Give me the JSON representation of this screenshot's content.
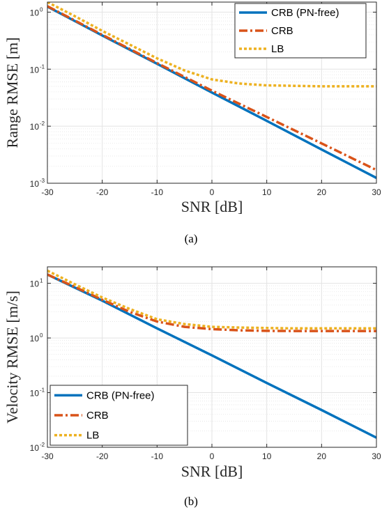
{
  "colors": {
    "crb_pn_free": "#0072BD",
    "crb": "#D95319",
    "lb": "#EDB120",
    "grid": "#e3e3e3",
    "axis": "#262626"
  },
  "chart_data": [
    {
      "type": "line",
      "caption": "(a)",
      "xlabel": "SNR [dB]",
      "ylabel": "Range RMSE [m]",
      "xscale": "linear",
      "yscale": "log",
      "xlim": [
        -30,
        30
      ],
      "ylim": [
        0.001,
        1.5
      ],
      "xticks": [
        -30,
        -20,
        -10,
        0,
        10,
        20,
        30
      ],
      "xtick_labels": [
        "-30",
        "-20",
        "-10",
        "0",
        "10",
        "20",
        "30"
      ],
      "yticks": [
        0.001,
        0.01,
        0.1,
        1
      ],
      "ytick_labels": [
        "10",
        "10",
        "10",
        "10"
      ],
      "ytick_exponents": [
        "-3",
        "-2",
        "-1",
        "0"
      ],
      "grid": true,
      "legend_position": "top-right",
      "series": [
        {
          "name": "CRB (PN-free)",
          "style": "solid",
          "color_key": "crb_pn_free",
          "x": [
            -30,
            -20,
            -10,
            0,
            10,
            20,
            30
          ],
          "y": [
            1.25,
            0.39,
            0.124,
            0.039,
            0.0124,
            0.0039,
            0.00124
          ]
        },
        {
          "name": "CRB",
          "style": "dashdot",
          "color_key": "crb",
          "x": [
            -30,
            -20,
            -10,
            0,
            10,
            20,
            30
          ],
          "y": [
            1.27,
            0.4,
            0.128,
            0.042,
            0.0145,
            0.005,
            0.0017
          ]
        },
        {
          "name": "LB",
          "style": "dotted",
          "color_key": "lb",
          "x": [
            -30,
            -25,
            -20,
            -15,
            -10,
            -5,
            0,
            5,
            10,
            15,
            20,
            25,
            30
          ],
          "y": [
            1.5,
            0.85,
            0.47,
            0.27,
            0.155,
            0.095,
            0.066,
            0.056,
            0.052,
            0.051,
            0.05,
            0.05,
            0.05
          ]
        }
      ]
    },
    {
      "type": "line",
      "caption": "(b)",
      "xlabel": "SNR [dB]",
      "ylabel": "Velocity RMSE [m/s]",
      "xscale": "linear",
      "yscale": "log",
      "xlim": [
        -30,
        30
      ],
      "ylim": [
        0.01,
        20
      ],
      "xticks": [
        -30,
        -20,
        -10,
        0,
        10,
        20,
        30
      ],
      "xtick_labels": [
        "-30",
        "-20",
        "-10",
        "0",
        "10",
        "20",
        "30"
      ],
      "yticks": [
        0.01,
        0.1,
        1,
        10
      ],
      "ytick_labels": [
        "10",
        "10",
        "10",
        "10"
      ],
      "ytick_exponents": [
        "-2",
        "-1",
        "0",
        "1"
      ],
      "grid": true,
      "legend_position": "bottom-left",
      "series": [
        {
          "name": "CRB (PN-free)",
          "style": "solid",
          "color_key": "crb_pn_free",
          "x": [
            -30,
            -20,
            -10,
            0,
            10,
            20,
            30
          ],
          "y": [
            14.5,
            4.8,
            1.5,
            0.48,
            0.15,
            0.048,
            0.015
          ]
        },
        {
          "name": "CRB",
          "style": "dashdot",
          "color_key": "crb",
          "x": [
            -30,
            -25,
            -20,
            -15,
            -10,
            -5,
            0,
            5,
            10,
            15,
            20,
            25,
            30
          ],
          "y": [
            14.5,
            8.6,
            5.0,
            3.0,
            2.0,
            1.6,
            1.45,
            1.38,
            1.35,
            1.34,
            1.34,
            1.34,
            1.34
          ]
        },
        {
          "name": "LB",
          "style": "dotted",
          "color_key": "lb",
          "x": [
            -30,
            -25,
            -20,
            -15,
            -10,
            -5,
            0,
            5,
            10,
            15,
            20,
            25,
            30
          ],
          "y": [
            17.0,
            9.6,
            5.5,
            3.4,
            2.2,
            1.8,
            1.6,
            1.55,
            1.52,
            1.5,
            1.5,
            1.5,
            1.5
          ]
        }
      ]
    }
  ]
}
